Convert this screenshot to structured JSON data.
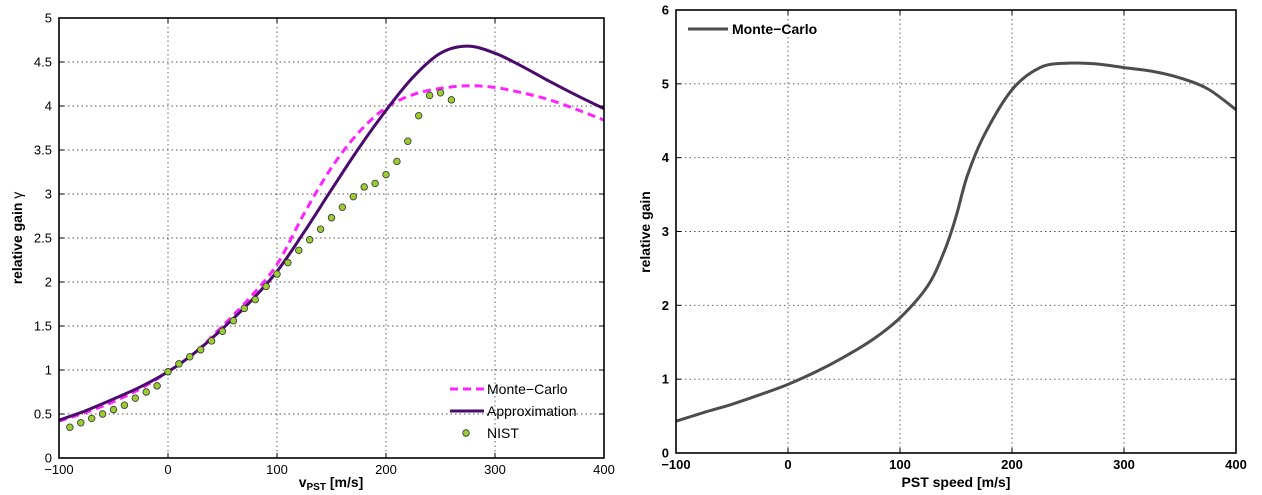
{
  "chart_data": [
    {
      "type": "line",
      "xlabel_main": "v",
      "xlabel_sub": "PST",
      "xlabel_rest": " [m/s]",
      "ylabel_text": "relative gain ",
      "ylabel_symbol": "γ",
      "xlim": [
        -100,
        400
      ],
      "ylim": [
        0,
        5
      ],
      "xticks": [
        -100,
        0,
        100,
        200,
        300,
        400
      ],
      "xtick_labels": [
        "−100",
        "0",
        "100",
        "200",
        "300",
        "400"
      ],
      "yticks": [
        0,
        0.5,
        1,
        1.5,
        2,
        2.5,
        3,
        3.5,
        4,
        4.5,
        5
      ],
      "ytick_labels": [
        "0",
        "0.5",
        "1",
        "1.5",
        "2",
        "2.5",
        "3",
        "3.5",
        "4",
        "4.5",
        "5"
      ],
      "grid": true,
      "legend_position": "bottom-right",
      "series": [
        {
          "name": "Monte−Carlo",
          "style": "dashed",
          "color": "#ff22ff",
          "x": [
            -100,
            -75,
            -50,
            -25,
            0,
            25,
            50,
            75,
            100,
            125,
            150,
            175,
            200,
            225,
            250,
            275,
            300,
            325,
            350,
            375,
            400
          ],
          "y": [
            0.42,
            0.52,
            0.64,
            0.79,
            0.98,
            1.2,
            1.5,
            1.82,
            2.2,
            2.78,
            3.3,
            3.7,
            3.98,
            4.13,
            4.2,
            4.23,
            4.21,
            4.15,
            4.07,
            3.96,
            3.84
          ]
        },
        {
          "name": "Approximation",
          "style": "solid",
          "color": "#4b0a6e",
          "x": [
            -100,
            -75,
            -50,
            -25,
            0,
            25,
            50,
            75,
            100,
            125,
            150,
            175,
            200,
            225,
            250,
            275,
            300,
            325,
            350,
            375,
            400
          ],
          "y": [
            0.43,
            0.54,
            0.67,
            0.81,
            0.98,
            1.2,
            1.47,
            1.77,
            2.12,
            2.57,
            3.05,
            3.52,
            3.95,
            4.33,
            4.6,
            4.68,
            4.6,
            4.45,
            4.28,
            4.12,
            3.97
          ]
        },
        {
          "name": "NIST",
          "style": "markers",
          "color": "#9acd32",
          "x": [
            -90,
            -80,
            -70,
            -60,
            -50,
            -40,
            -30,
            -20,
            -10,
            0,
            10,
            20,
            30,
            40,
            50,
            60,
            70,
            80,
            90,
            100,
            110,
            120,
            130,
            140,
            150,
            160,
            170,
            180,
            190,
            200,
            210,
            220,
            230,
            240,
            250,
            260
          ],
          "y": [
            0.35,
            0.4,
            0.45,
            0.5,
            0.55,
            0.6,
            0.68,
            0.75,
            0.82,
            0.98,
            1.07,
            1.15,
            1.23,
            1.33,
            1.44,
            1.56,
            1.7,
            1.8,
            1.95,
            2.09,
            2.22,
            2.36,
            2.48,
            2.6,
            2.73,
            2.85,
            2.97,
            3.08,
            3.12,
            3.22,
            3.37,
            3.6,
            3.89,
            4.12,
            4.15,
            4.07
          ]
        }
      ]
    },
    {
      "type": "line",
      "xlabel": "PST speed [m/s]",
      "ylabel": "relative gain",
      "xlim": [
        -100,
        400
      ],
      "ylim": [
        0,
        6
      ],
      "xticks": [
        -100,
        0,
        100,
        200,
        300,
        400
      ],
      "xtick_labels": [
        "−100",
        "0",
        "100",
        "200",
        "300",
        "400"
      ],
      "yticks": [
        0,
        1,
        2,
        3,
        4,
        5,
        6
      ],
      "ytick_labels": [
        "0",
        "1",
        "2",
        "3",
        "4",
        "5",
        "6"
      ],
      "grid": true,
      "legend_position": "top-left",
      "series": [
        {
          "name": "Monte−Carlo",
          "style": "solid",
          "color": "#4d4d4d",
          "x": [
            -100,
            -75,
            -50,
            -25,
            0,
            25,
            50,
            75,
            100,
            125,
            140,
            150,
            160,
            175,
            200,
            225,
            250,
            275,
            300,
            325,
            350,
            375,
            400
          ],
          "y": [
            0.43,
            0.55,
            0.66,
            0.79,
            0.93,
            1.1,
            1.3,
            1.53,
            1.83,
            2.27,
            2.75,
            3.2,
            3.75,
            4.3,
            4.92,
            5.22,
            5.28,
            5.27,
            5.22,
            5.17,
            5.08,
            4.93,
            4.65
          ]
        }
      ]
    }
  ]
}
